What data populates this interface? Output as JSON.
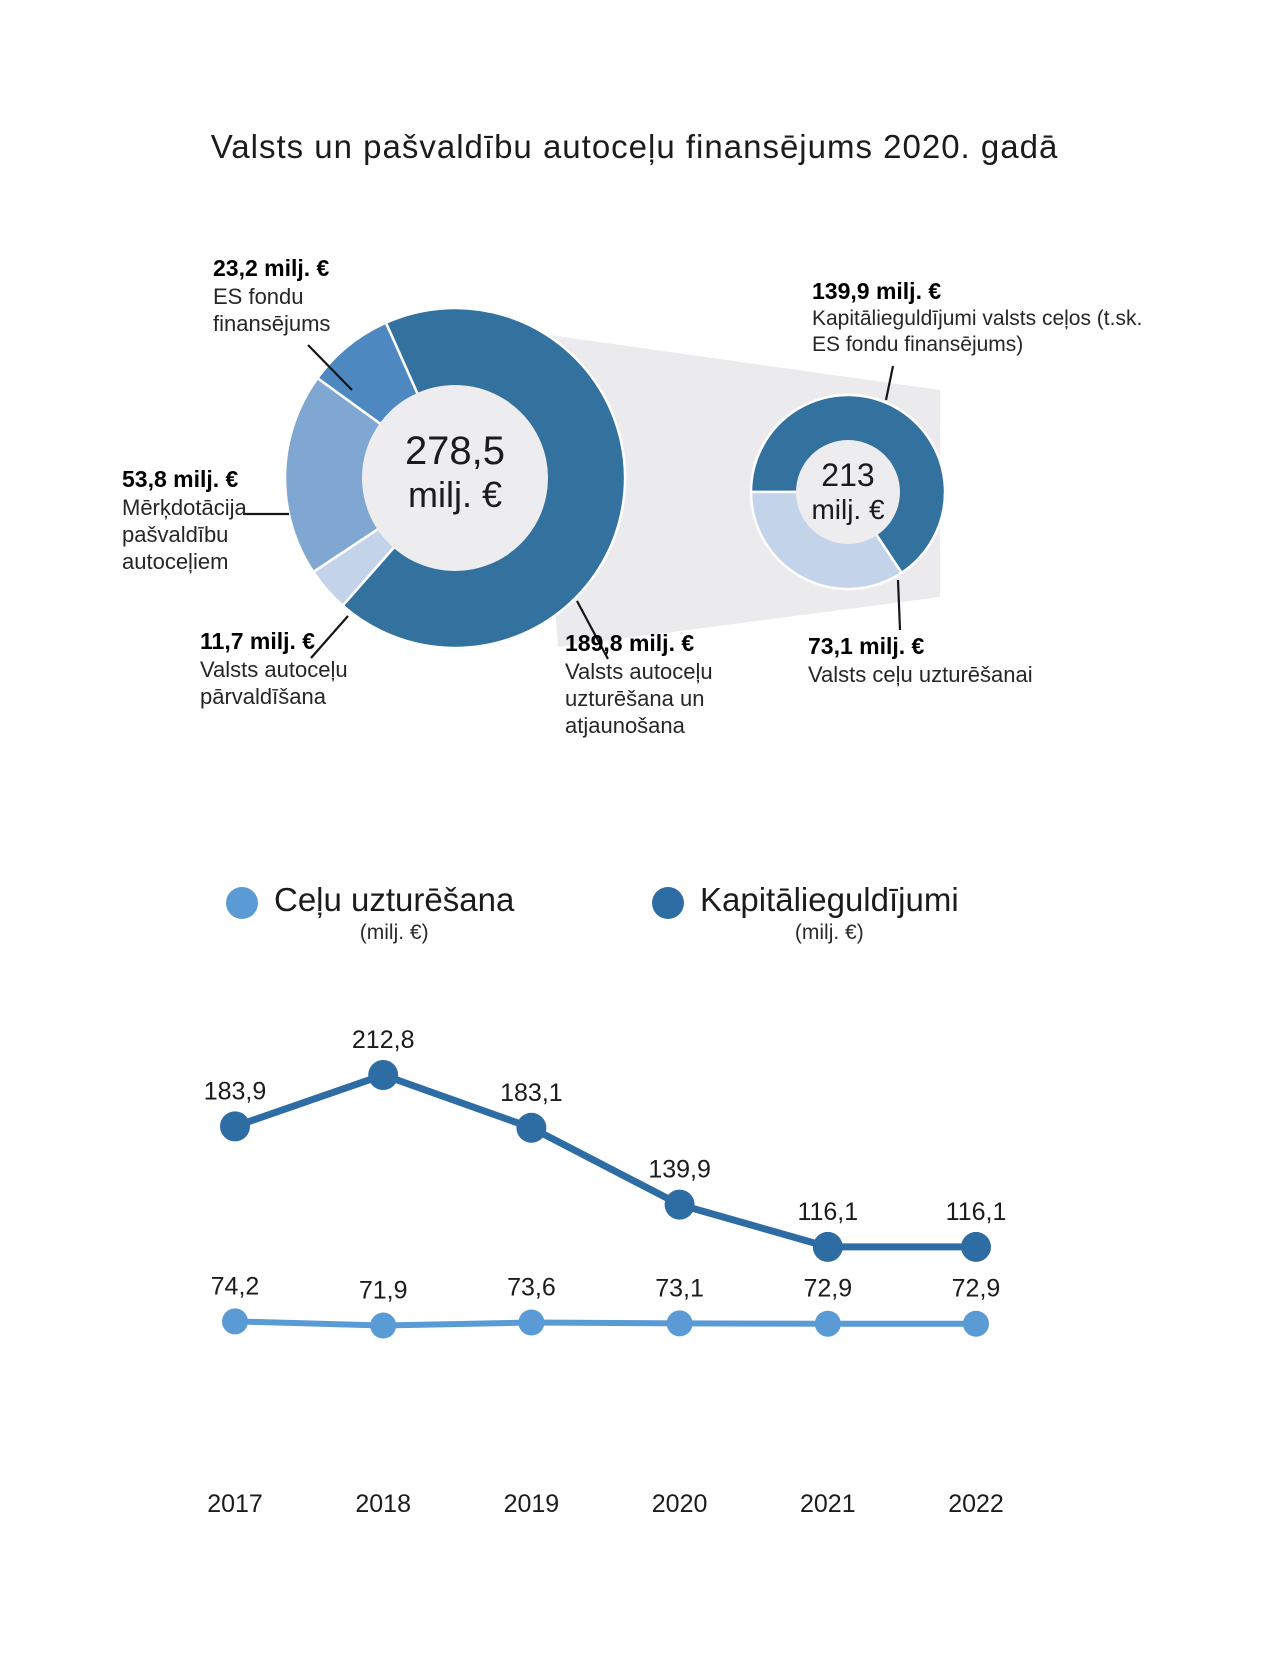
{
  "title": "Valsts un pašvaldību autoceļu finansējums 2020. gadā",
  "colors": {
    "dark_blue": "#33719f",
    "medium_blue": "#4d88c0",
    "light_blue": "#7fa7d2",
    "pale_blue": "#c3d3ea",
    "series_capital": "#2e6da4",
    "series_maintenance": "#5b9bd5",
    "donut_hole": "#ededef",
    "beam": "#ebebed",
    "leader": "#161616"
  },
  "chart_data": [
    {
      "type": "pie",
      "subtype": "donut",
      "title": "Valsts un pašvaldību autoceļu finansējums 2020. gadā",
      "center": [
        "278,5",
        "milj. €"
      ],
      "total": 278.5,
      "slices": [
        {
          "value": 189.8,
          "value_label": "189,8 milj. €",
          "label": "Valsts autoceļu uzturēšana un atjaunošana",
          "color_key": "dark_blue"
        },
        {
          "value": 11.7,
          "value_label": "11,7 milj. €",
          "label": "Valsts autoceļu pārvaldīšana",
          "color_key": "pale_blue"
        },
        {
          "value": 53.8,
          "value_label": "53,8 milj. €",
          "label": "Mērķdotācija pašvaldību autoceļiem",
          "color_key": "light_blue"
        },
        {
          "value": 23.2,
          "value_label": "23,2 milj. €",
          "label": "ES fondu finansējums",
          "color_key": "medium_blue"
        }
      ]
    },
    {
      "type": "pie",
      "subtype": "donut",
      "title": "Valsts ceļu finansējums (izvērsums)",
      "center": [
        "213",
        "milj. €"
      ],
      "total": 213,
      "slices": [
        {
          "value": 139.9,
          "value_label": "139,9 milj. €",
          "label": "Kapitālieguldījumi valsts ceļos (t.sk. ES fondu finansējums)",
          "color_key": "dark_blue"
        },
        {
          "value": 73.1,
          "value_label": "73,1 milj. €",
          "label": "Valsts ceļu uzturēšanai",
          "color_key": "pale_blue"
        }
      ]
    },
    {
      "type": "line",
      "categories": [
        "2017",
        "2018",
        "2019",
        "2020",
        "2021",
        "2022"
      ],
      "series": [
        {
          "name": "Kapitālieguldījumi",
          "unit": "(milj. €)",
          "color_key": "series_capital",
          "values": [
            183.9,
            212.8,
            183.1,
            139.9,
            116.1,
            116.1
          ],
          "labels": [
            "183,9",
            "212,8",
            "183,1",
            "139,9",
            "116,1",
            "116,1"
          ]
        },
        {
          "name": "Ceļu uzturēšana",
          "unit": "(milj. €)",
          "color_key": "series_maintenance",
          "values": [
            74.2,
            71.9,
            73.6,
            73.1,
            72.9,
            72.9
          ],
          "labels": [
            "74,2",
            "71,9",
            "73,6",
            "73,1",
            "72,9",
            "72,9"
          ]
        }
      ],
      "legend_position": "top",
      "grid": false,
      "axes": "x categories only, values shown as data labels"
    }
  ]
}
